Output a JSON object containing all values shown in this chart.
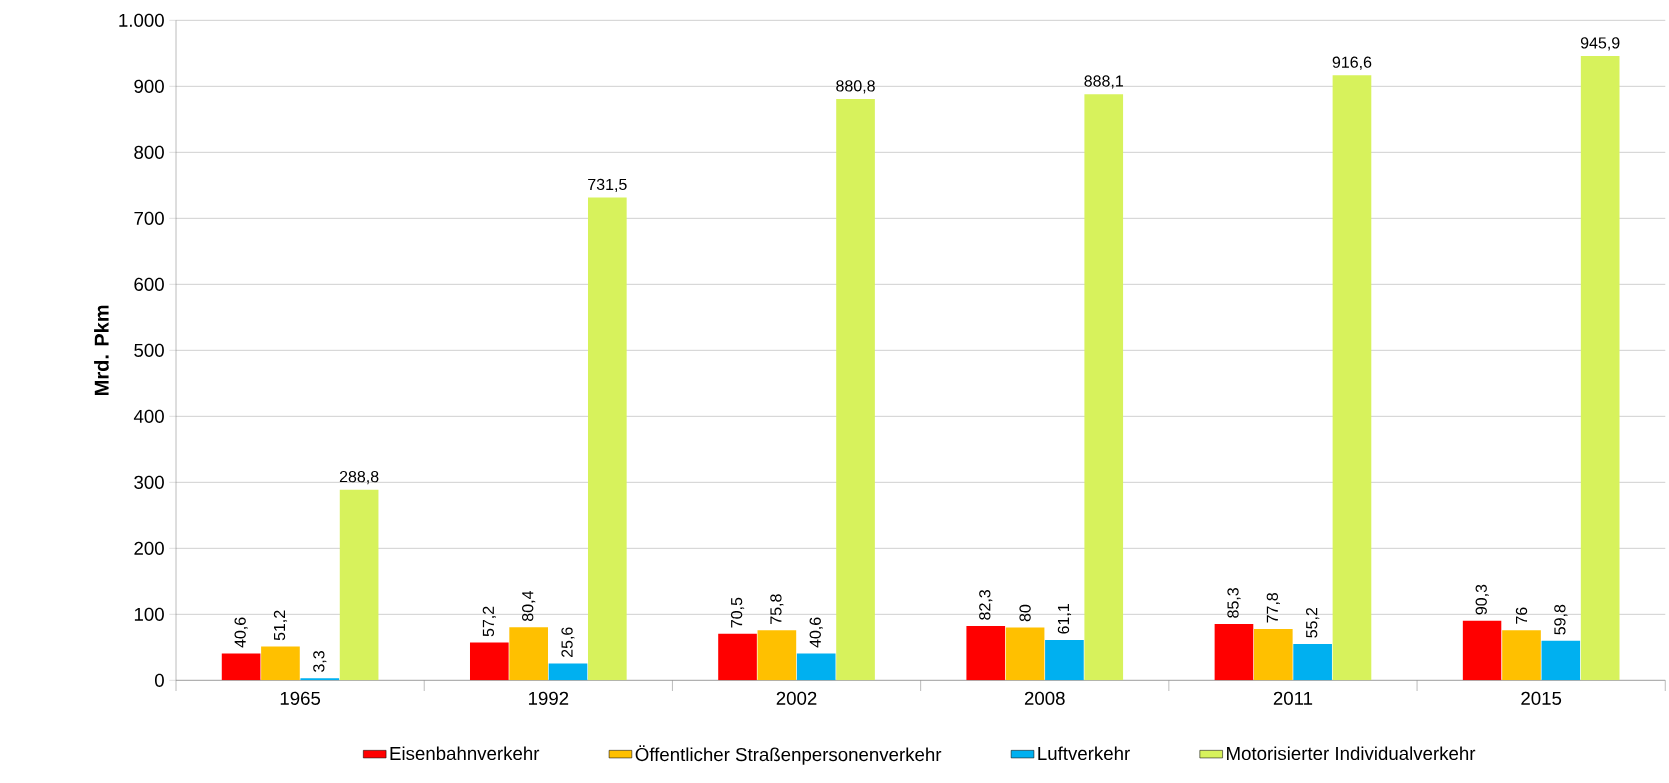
{
  "chart_data": {
    "type": "bar",
    "ylabel": "Mrd. Pkm",
    "categories": [
      "1965",
      "1992",
      "2002",
      "2008",
      "2011",
      "2015"
    ],
    "series": [
      {
        "name": "Eisenbahnverkehr",
        "color": "#ff0000",
        "values": [
          40.6,
          57.2,
          70.5,
          82.3,
          85.3,
          90.3
        ],
        "value_labels": [
          "40,6",
          "57,2",
          "70,5",
          "82,3",
          "85,3",
          "90,3"
        ]
      },
      {
        "name": "Öffentlicher Straßenpersonenverkehr",
        "color": "#ffc000",
        "values": [
          51.2,
          80.4,
          75.8,
          80,
          77.8,
          76
        ],
        "value_labels": [
          "51,2",
          "80,4",
          "75,8",
          "80",
          "77,8",
          "76"
        ]
      },
      {
        "name": "Luftverkehr",
        "color": "#00b0f0",
        "values": [
          3.3,
          25.6,
          40.6,
          61.1,
          55.2,
          59.8
        ],
        "value_labels": [
          "3,3",
          "25,6",
          "40,6",
          "61,1",
          "55,2",
          "59,8"
        ]
      },
      {
        "name": "Motorisierter Individualverkehr",
        "color": "#d7f25c",
        "values": [
          288.8,
          731.5,
          880.8,
          888.1,
          916.6,
          945.9
        ],
        "value_labels": [
          "288,8",
          "731,5",
          "880,8",
          "888,1",
          "916,6",
          "945,9"
        ]
      }
    ],
    "ylim": [
      0,
      1000
    ],
    "yticks": [
      0,
      100,
      200,
      300,
      400,
      500,
      600,
      700,
      800,
      900,
      {
        "value": 1000,
        "label": "1.000"
      }
    ],
    "grid": "y",
    "legend": "bottom"
  }
}
